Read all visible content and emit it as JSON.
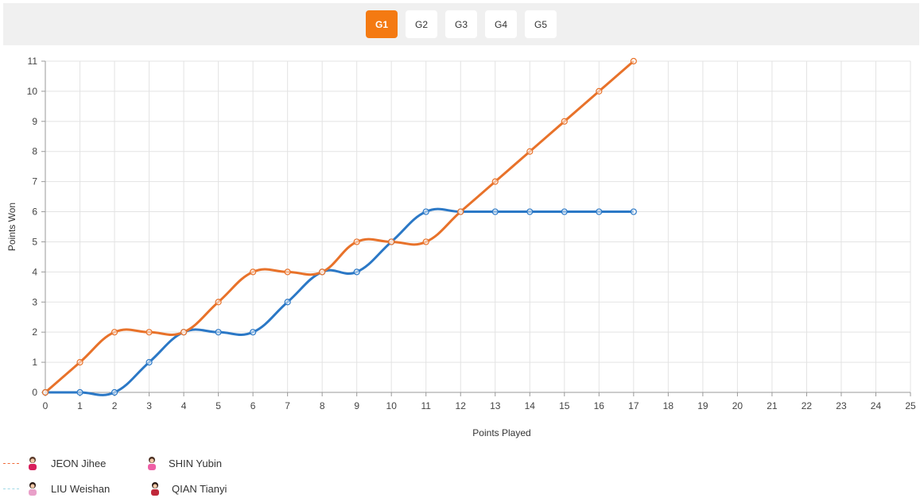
{
  "games": {
    "tabs": [
      {
        "label": "G1",
        "active": true
      },
      {
        "label": "G2",
        "active": false
      },
      {
        "label": "G3",
        "active": false
      },
      {
        "label": "G4",
        "active": false
      },
      {
        "label": "G5",
        "active": false
      }
    ]
  },
  "legend": {
    "team_a": {
      "player1": "JEON Jihee",
      "player2": "SHIN Yubin",
      "color": "#f06b3b"
    },
    "team_b": {
      "player1": "LIU Weishan",
      "player2": "QIAN Tianyi",
      "color": "#9fd9e6"
    }
  },
  "chart_data": {
    "type": "line",
    "title": "",
    "xlabel": "Points Played",
    "ylabel": "Points Won",
    "xlim": [
      0,
      25
    ],
    "ylim": [
      0,
      11
    ],
    "x_ticks": [
      0,
      1,
      2,
      3,
      4,
      5,
      6,
      7,
      8,
      9,
      10,
      11,
      12,
      13,
      14,
      15,
      16,
      17,
      18,
      19,
      20,
      21,
      22,
      23,
      24,
      25
    ],
    "y_ticks": [
      0,
      1,
      2,
      3,
      4,
      5,
      6,
      7,
      8,
      9,
      10,
      11
    ],
    "grid": true,
    "x": [
      0,
      1,
      2,
      3,
      4,
      5,
      6,
      7,
      8,
      9,
      10,
      11,
      12,
      13,
      14,
      15,
      16,
      17
    ],
    "series": [
      {
        "color": "#e8722a",
        "values": [
          0,
          1,
          2,
          2,
          2,
          3,
          4,
          4,
          4,
          5,
          5,
          5,
          6,
          7,
          8,
          9,
          10,
          11
        ]
      },
      {
        "color": "#2b78c6",
        "values": [
          0,
          0,
          0,
          1,
          2,
          2,
          2,
          3,
          4,
          4,
          5,
          6,
          6,
          6,
          6,
          6,
          6,
          6
        ]
      }
    ]
  }
}
